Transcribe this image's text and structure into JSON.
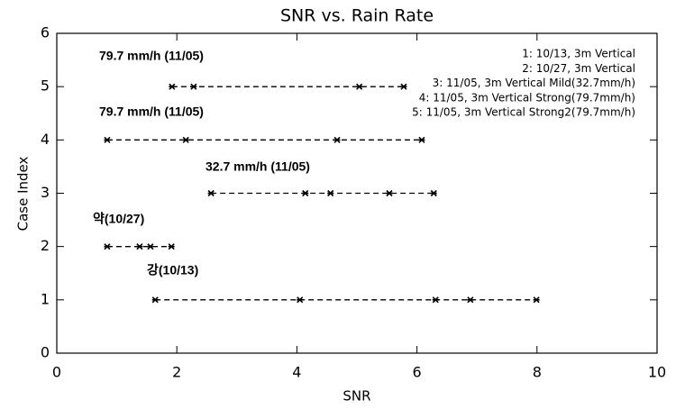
{
  "chart_data": {
    "type": "line",
    "title": "SNR vs. Rain Rate",
    "x_label": "SNR",
    "y_label": "Case Index",
    "xlim": [
      0,
      10
    ],
    "ylim": [
      0,
      6
    ],
    "xticks": [
      0,
      2,
      4,
      6,
      8,
      10
    ],
    "yticks": [
      0,
      1,
      2,
      3,
      4,
      5,
      6
    ],
    "color": "#000000",
    "line_style": "dashed",
    "marker": "star",
    "legend": "upper right",
    "series": [
      {
        "name": "1: 10/13, 3m Vertical",
        "x": [
          1.64,
          4.05,
          6.31,
          6.89,
          7.99
        ],
        "values": [
          1,
          1,
          1,
          1,
          1
        ]
      },
      {
        "name": "2: 10/27, 3m Vertical",
        "x": [
          0.84,
          1.38,
          1.56,
          1.91
        ],
        "values": [
          2,
          2,
          2,
          2
        ]
      },
      {
        "name": "3: 11/05, 3m Vertical Mild(32.7mm/h)",
        "x": [
          2.57,
          4.14,
          4.56,
          5.54,
          6.28
        ],
        "values": [
          3,
          3,
          3,
          3,
          3
        ]
      },
      {
        "name": "4: 11/05, 3m Vertical Strong(79.7mm/h)",
        "x": [
          0.84,
          2.15,
          4.67,
          6.08
        ],
        "values": [
          4,
          4,
          4,
          4
        ]
      },
      {
        "name": "5: 11/05, 3m Vertical Strong2(79.7mm/h)",
        "x": [
          1.92,
          2.28,
          5.04,
          5.78
        ],
        "values": [
          5,
          5,
          5,
          5
        ]
      }
    ],
    "annotations": [
      "79.7 mm/h (11/05)",
      "79.7 mm/h (11/05)",
      "32.7 mm/h (11/05)",
      "약(10/27)",
      "강(10/13)"
    ]
  }
}
